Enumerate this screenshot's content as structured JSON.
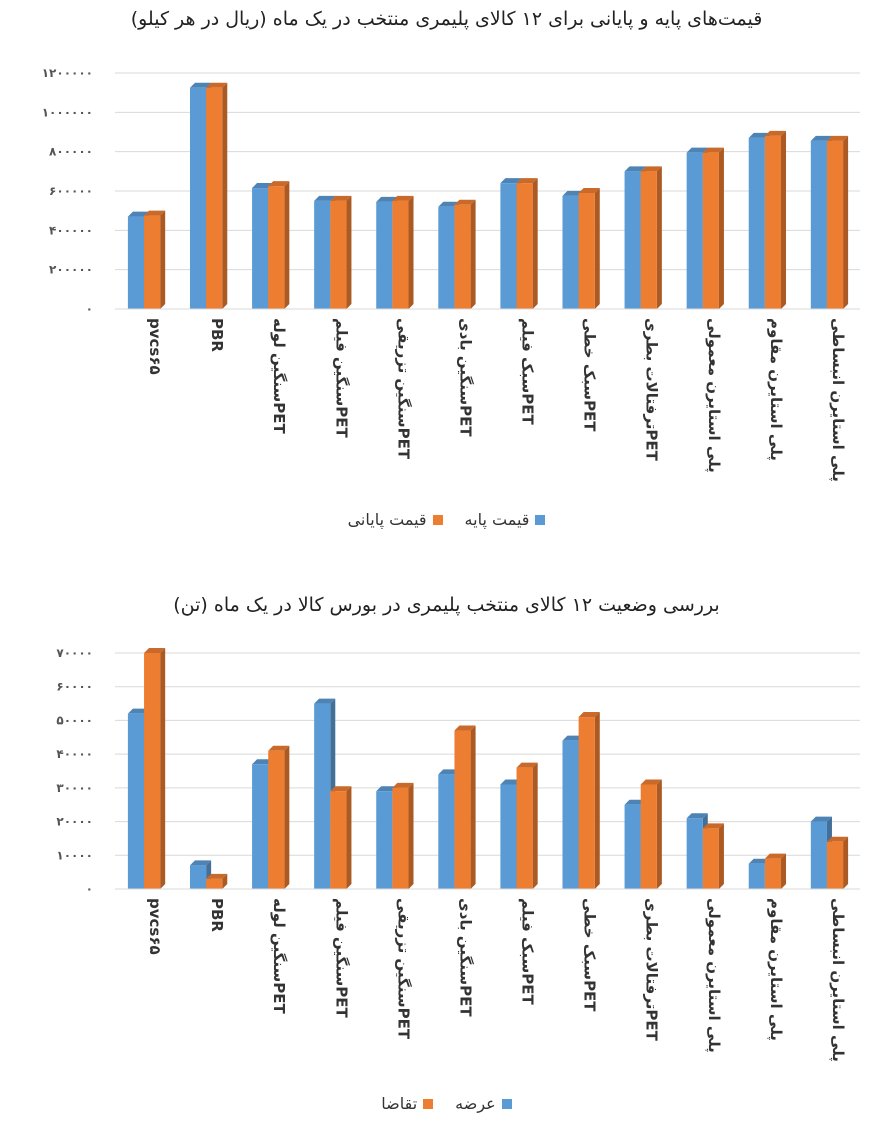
{
  "chart_data": [
    {
      "type": "bar",
      "title": "قیمت‌های پایه و پایانی برای ۱۲ کالای پلیمری منتخب در یک ماه (ریال در هر کیلو)",
      "categories": [
        "pvcs۶۵",
        "PBR",
        "PETسنگین لوله",
        "PETسنگین فیلم",
        "PETسنگین تزریقی",
        "PETسنگین بادی",
        "PETسبک فیلم",
        "PETسبک خطی",
        "PETترفتالات بطری",
        "پلی استایرن معمولی",
        "پلی استایرن مقاوم",
        "پلی استایرن انبساطی"
      ],
      "series": [
        {
          "name": "قیمت پایه",
          "color": "#5b9bd5",
          "values": [
            470000,
            1125000,
            615000,
            550000,
            545000,
            520000,
            640000,
            575000,
            700000,
            795000,
            870000,
            855000
          ]
        },
        {
          "name": "قیمت پایانی",
          "color": "#ed7d31",
          "values": [
            475000,
            1125000,
            625000,
            550000,
            550000,
            530000,
            640000,
            590000,
            700000,
            795000,
            880000,
            855000
          ]
        }
      ],
      "yticks": [
        "۱۲۰۰۰۰۰",
        "۱۰۰۰۰۰۰",
        "۸۰۰۰۰۰",
        "۶۰۰۰۰۰",
        "۴۰۰۰۰۰",
        "۲۰۰۰۰۰",
        "۰"
      ],
      "ylim": [
        0,
        1200000
      ],
      "grid": true,
      "legend": "bottom"
    },
    {
      "type": "bar",
      "title": "بررسی وضعیت ۱۲ کالای منتخب پلیمری در بورس کالا در یک ماه (تن)",
      "categories": [
        "pvcs۶۵",
        "PBR",
        "PETسنگین لوله",
        "PETسنگین فیلم",
        "PETسنگین تزریقی",
        "PETسنگین بادی",
        "PETسبک فیلم",
        "PETسبک خطی",
        "PETترفتالات بطری",
        "پلی استایرن معمولی",
        "پلی استایرن مقاوم",
        "پلی استایرن انبساطی"
      ],
      "series": [
        {
          "name": "عرضه",
          "color": "#5b9bd5",
          "values": [
            52000,
            7000,
            37000,
            55000,
            29000,
            34000,
            31000,
            44000,
            25000,
            21000,
            7500,
            20000
          ]
        },
        {
          "name": "تقاضا",
          "color": "#ed7d31",
          "values": [
            70000,
            3000,
            41000,
            29000,
            30000,
            47000,
            36000,
            51000,
            31000,
            18000,
            9000,
            14000
          ]
        }
      ],
      "yticks": [
        "۷۰۰۰۰",
        "۶۰۰۰۰",
        "۵۰۰۰۰",
        "۴۰۰۰۰",
        "۳۰۰۰۰",
        "۲۰۰۰۰",
        "۱۰۰۰۰",
        "۰"
      ],
      "ylim": [
        0,
        70000
      ],
      "grid": true,
      "legend": "bottom"
    }
  ]
}
